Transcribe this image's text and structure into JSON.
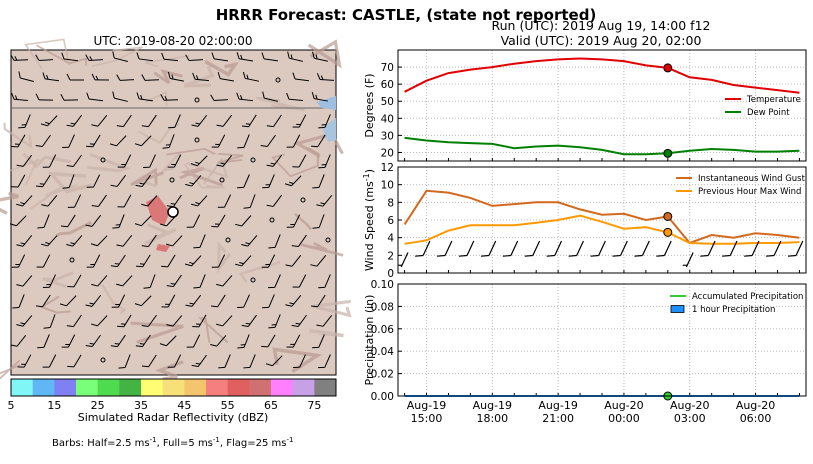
{
  "figure": {
    "suptitle": "HRRR Forecast: CASTLE, (state not reported)",
    "run_label": "Run (UTC): 2019 Aug 19, 14:00 f12",
    "valid_label": "Valid (UTC): 2019 Aug 20, 02:00",
    "barb_note_main": "Barbs: Half=2.5 ms",
    "barb_note_tail": ", Full=5 ms",
    "barb_note_tail2": ", Flag=25 ms",
    "barb_note_sup": "-1"
  },
  "map": {
    "title": "UTC: 2019-08-20 02:00:00",
    "colorbar": {
      "label": "Simulated Radar Reflectivity (dBZ)",
      "ticks": [
        5,
        15,
        25,
        35,
        45,
        55,
        65,
        75
      ],
      "colors": [
        "#7ff7f7",
        "#5fb8f5",
        "#8080f5",
        "#7aff7a",
        "#4fdb4f",
        "#43b443",
        "#fffd74",
        "#f7e07a",
        "#f5c56e",
        "#f57f7f",
        "#e06060",
        "#d07070",
        "#ff7fff",
        "#c8a0e6",
        "#808080"
      ],
      "range": [
        5,
        80
      ]
    }
  },
  "chart_data": [
    {
      "type": "line",
      "panel": "temperature",
      "ylabel": "Degrees (F)",
      "ylim": [
        15,
        80
      ],
      "yticks": [
        20,
        30,
        40,
        50,
        60,
        70
      ],
      "grid": true,
      "legend_position": "right",
      "x": [
        "2019-08-19 14:00",
        "2019-08-19 15:00",
        "2019-08-19 16:00",
        "2019-08-19 17:00",
        "2019-08-19 18:00",
        "2019-08-19 19:00",
        "2019-08-19 20:00",
        "2019-08-19 21:00",
        "2019-08-19 22:00",
        "2019-08-19 23:00",
        "2019-08-20 00:00",
        "2019-08-20 01:00",
        "2019-08-20 02:00",
        "2019-08-20 03:00",
        "2019-08-20 04:00",
        "2019-08-20 05:00",
        "2019-08-20 06:00",
        "2019-08-20 07:00",
        "2019-08-20 08:00"
      ],
      "series": [
        {
          "name": "Temperature",
          "color": "#e00000",
          "values": [
            55.5,
            62,
            66.5,
            68.5,
            70,
            72,
            73.5,
            74.5,
            75,
            74.5,
            73.5,
            71,
            69.5,
            64,
            62.5,
            59.5,
            58,
            56.5,
            55
          ]
        },
        {
          "name": "Dew Point",
          "color": "#008000",
          "values": [
            28.5,
            27,
            26,
            25.5,
            25,
            22.5,
            23.5,
            24,
            23,
            21.5,
            19,
            19,
            19.5,
            21,
            22,
            21.5,
            20.5,
            20.5,
            21
          ]
        }
      ],
      "highlight_index": 12
    },
    {
      "type": "line",
      "panel": "wind",
      "ylabel": "Wind Speed (ms",
      "ylabel_sup": "-1",
      "ylabel_tail": ")",
      "ylim": [
        0,
        12
      ],
      "yticks": [
        0,
        2,
        4,
        6,
        8,
        10,
        12
      ],
      "grid": true,
      "legend_position": "upper right",
      "x": [
        "2019-08-19 14:00",
        "2019-08-19 15:00",
        "2019-08-19 16:00",
        "2019-08-19 17:00",
        "2019-08-19 18:00",
        "2019-08-19 19:00",
        "2019-08-19 20:00",
        "2019-08-19 21:00",
        "2019-08-19 22:00",
        "2019-08-19 23:00",
        "2019-08-20 00:00",
        "2019-08-20 01:00",
        "2019-08-20 02:00",
        "2019-08-20 03:00",
        "2019-08-20 04:00",
        "2019-08-20 05:00",
        "2019-08-20 06:00",
        "2019-08-20 07:00",
        "2019-08-20 08:00"
      ],
      "series": [
        {
          "name": "Instantaneous Wind Gust",
          "color": "#d2691e",
          "values": [
            5.5,
            9.3,
            9.1,
            8.5,
            7.6,
            7.8,
            8.0,
            8.0,
            7.2,
            6.6,
            6.7,
            6.0,
            6.4,
            3.4,
            4.3,
            4.0,
            4.5,
            4.3,
            4.0
          ]
        },
        {
          "name": "Previous Hour Max Wind",
          "color": "#ff9900",
          "values": [
            3.3,
            3.7,
            4.8,
            5.4,
            5.4,
            5.4,
            5.7,
            6.0,
            6.5,
            5.8,
            5.0,
            5.2,
            4.6,
            3.4,
            3.3,
            3.3,
            3.4,
            3.4,
            3.5
          ]
        }
      ],
      "barbs": [
        {
          "speed": 2.5,
          "dir": 240
        },
        {
          "speed": 5,
          "dir": 240
        },
        {
          "speed": 5,
          "dir": 245
        },
        {
          "speed": 5,
          "dir": 250
        },
        {
          "speed": 5,
          "dir": 250
        },
        {
          "speed": 5,
          "dir": 250
        },
        {
          "speed": 5,
          "dir": 250
        },
        {
          "speed": 5,
          "dir": 250
        },
        {
          "speed": 5,
          "dir": 255
        },
        {
          "speed": 5,
          "dir": 255
        },
        {
          "speed": 5,
          "dir": 250
        },
        {
          "speed": 5,
          "dir": 250
        },
        {
          "speed": 5,
          "dir": 250
        },
        {
          "speed": 2.5,
          "dir": 240
        },
        {
          "speed": 5,
          "dir": 240
        },
        {
          "speed": 5,
          "dir": 240
        },
        {
          "speed": 5,
          "dir": 240
        },
        {
          "speed": 5,
          "dir": 240
        },
        {
          "speed": 5,
          "dir": 240
        }
      ],
      "highlight_index": 12
    },
    {
      "type": "area",
      "panel": "precipitation",
      "ylabel": "Precipitation (in)",
      "ylim": [
        0,
        0.1
      ],
      "yticks": [
        "0.00",
        "0.02",
        "0.04",
        "0.06",
        "0.08",
        "0.10"
      ],
      "grid": true,
      "legend_position": "upper right",
      "x": [
        "2019-08-19 14:00",
        "2019-08-19 15:00",
        "2019-08-19 16:00",
        "2019-08-19 17:00",
        "2019-08-19 18:00",
        "2019-08-19 19:00",
        "2019-08-19 20:00",
        "2019-08-19 21:00",
        "2019-08-19 22:00",
        "2019-08-19 23:00",
        "2019-08-20 00:00",
        "2019-08-20 01:00",
        "2019-08-20 02:00",
        "2019-08-20 03:00",
        "2019-08-20 04:00",
        "2019-08-20 05:00",
        "2019-08-20 06:00",
        "2019-08-20 07:00",
        "2019-08-20 08:00"
      ],
      "series": [
        {
          "name": "Accumulated Precipitation",
          "color": "#33cc33",
          "values": [
            0,
            0,
            0,
            0,
            0,
            0,
            0,
            0,
            0,
            0,
            0,
            0,
            0,
            0,
            0,
            0,
            0,
            0,
            0
          ]
        },
        {
          "name": "1 hour Precipitation",
          "color": "#1e90ff",
          "values": [
            0,
            0,
            0,
            0,
            0,
            0,
            0,
            0,
            0,
            0,
            0,
            0,
            0,
            0,
            0,
            0,
            0,
            0,
            0
          ]
        }
      ],
      "xtick_labels": [
        {
          "date": "Aug-19",
          "time": "15:00",
          "index": 1
        },
        {
          "date": "Aug-19",
          "time": "18:00",
          "index": 4
        },
        {
          "date": "Aug-19",
          "time": "21:00",
          "index": 7
        },
        {
          "date": "Aug-20",
          "time": "00:00",
          "index": 10
        },
        {
          "date": "Aug-20",
          "time": "03:00",
          "index": 13
        },
        {
          "date": "Aug-20",
          "time": "06:00",
          "index": 16
        }
      ],
      "highlight_index": 12
    }
  ]
}
